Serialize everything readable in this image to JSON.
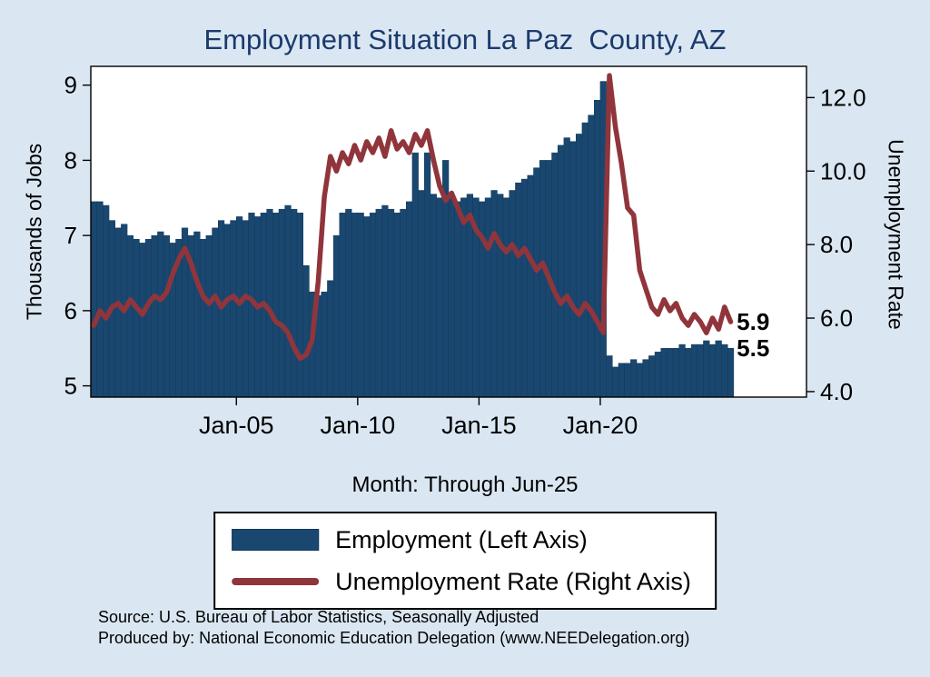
{
  "title": "Employment Situation La Paz  County, AZ",
  "colors": {
    "background": "#dae7f2",
    "plot_bg": "#ffffff",
    "bar": "#1a476f",
    "bar_border": "#123a5c",
    "line": "#90353b",
    "title_text": "#1b3a6d",
    "axis_text": "#000000"
  },
  "chart_data": {
    "type": "bar",
    "title": "Employment Situation La Paz  County, AZ",
    "xlabel": "Month: Through Jun-25",
    "ylabel_left": "Thousands of Jobs",
    "ylabel_right": "Unemployment Rate",
    "grid": false,
    "legend_position": "bottom",
    "x_start_year": 1999.0,
    "x_step_years": 0.25,
    "x_axis_range": [
      1999.0,
      2028.5
    ],
    "left_axis_range": [
      4.85,
      9.25
    ],
    "right_axis_range": [
      3.85,
      12.85
    ],
    "left_ticks": [
      5,
      6,
      7,
      8,
      9
    ],
    "right_tick_values": [
      4,
      6,
      8,
      10,
      12
    ],
    "right_ticks": [
      "4.0",
      "6.0",
      "8.0",
      "10.0",
      "12.0"
    ],
    "x_ticks": [
      {
        "label": "Jan-05",
        "year": 2005
      },
      {
        "label": "Jan-10",
        "year": 2010
      },
      {
        "label": "Jan-15",
        "year": 2015
      },
      {
        "label": "Jan-20",
        "year": 2020
      }
    ],
    "series": [
      {
        "name": "Employment (Left Axis)",
        "type": "bar",
        "axis": "left",
        "values": [
          7.45,
          7.45,
          7.4,
          7.2,
          7.1,
          7.15,
          7.0,
          6.95,
          6.9,
          6.95,
          7.0,
          7.05,
          7.0,
          6.9,
          6.95,
          7.1,
          7.0,
          7.05,
          6.95,
          7.0,
          7.1,
          7.2,
          7.15,
          7.2,
          7.25,
          7.2,
          7.3,
          7.25,
          7.3,
          7.35,
          7.3,
          7.35,
          7.4,
          7.35,
          7.3,
          6.6,
          6.25,
          6.2,
          6.25,
          6.4,
          7.0,
          7.3,
          7.35,
          7.3,
          7.3,
          7.25,
          7.3,
          7.35,
          7.4,
          7.35,
          7.3,
          7.35,
          7.45,
          8.1,
          7.6,
          8.1,
          7.55,
          7.5,
          8.0,
          7.5,
          7.45,
          7.5,
          7.55,
          7.5,
          7.45,
          7.5,
          7.6,
          7.55,
          7.5,
          7.6,
          7.7,
          7.75,
          7.8,
          7.9,
          8.0,
          8.0,
          8.1,
          8.2,
          8.3,
          8.25,
          8.35,
          8.5,
          8.6,
          8.8,
          9.05,
          5.4,
          5.25,
          5.3,
          5.3,
          5.35,
          5.3,
          5.35,
          5.4,
          5.45,
          5.5,
          5.5,
          5.5,
          5.55,
          5.5,
          5.55,
          5.55,
          5.6,
          5.55,
          5.6,
          5.55,
          5.5
        ]
      },
      {
        "name": "Unemployment Rate (Right Axis)",
        "type": "line",
        "axis": "right",
        "values": [
          5.8,
          6.2,
          6.0,
          6.3,
          6.4,
          6.2,
          6.5,
          6.3,
          6.1,
          6.4,
          6.6,
          6.5,
          6.7,
          7.2,
          7.6,
          7.9,
          7.5,
          7.0,
          6.6,
          6.4,
          6.6,
          6.3,
          6.5,
          6.6,
          6.4,
          6.6,
          6.5,
          6.3,
          6.4,
          6.2,
          5.9,
          5.8,
          5.6,
          5.2,
          4.9,
          5.0,
          5.4,
          7.0,
          9.3,
          10.4,
          10.0,
          10.5,
          10.2,
          10.7,
          10.3,
          10.8,
          10.5,
          10.9,
          10.4,
          11.1,
          10.6,
          10.8,
          10.5,
          11.0,
          10.7,
          11.1,
          10.3,
          9.6,
          9.2,
          9.4,
          9.0,
          8.6,
          8.8,
          8.4,
          8.2,
          7.9,
          8.3,
          8.0,
          7.8,
          8.0,
          7.7,
          7.9,
          7.6,
          7.3,
          7.5,
          7.1,
          6.7,
          6.4,
          6.6,
          6.3,
          6.1,
          6.4,
          6.2,
          5.9,
          5.6,
          12.6,
          11.2,
          10.2,
          9.0,
          8.8,
          7.3,
          6.8,
          6.3,
          6.1,
          6.5,
          6.2,
          6.4,
          6.0,
          5.8,
          6.1,
          5.9,
          5.6,
          6.0,
          5.7,
          6.3,
          5.9
        ]
      }
    ],
    "end_labels": [
      {
        "text": "5.9",
        "series": "unemployment"
      },
      {
        "text": "5.5",
        "series": "employment"
      }
    ]
  },
  "legend": {
    "items": [
      {
        "label": "Employment (Left Axis)",
        "swatch": "bar"
      },
      {
        "label": "Unemployment Rate (Right Axis)",
        "swatch": "line"
      }
    ]
  },
  "source_lines": [
    "Source: U.S. Bureau of Labor Statistics, Seasonally Adjusted",
    "Produced by: National Economic Education Delegation (www.NEEDelegation.org)"
  ]
}
